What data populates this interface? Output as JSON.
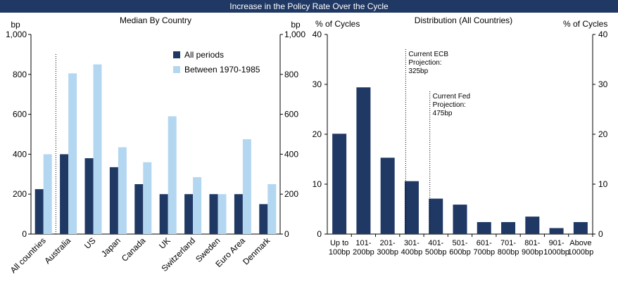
{
  "banner": {
    "title": "Increase in the Policy Rate Over the Cycle"
  },
  "colors": {
    "navy": "#1f3864",
    "light_blue": "#b4d7f1",
    "banner_bg": "#1f3864"
  },
  "chart_data": [
    {
      "type": "bar",
      "title": "Median By Country",
      "ylabel_left": "bp",
      "ylabel_right": "bp",
      "ylim": [
        0,
        1000
      ],
      "yticks": [
        "0",
        "200",
        "400",
        "600",
        "800",
        "1,000"
      ],
      "categories": [
        "All countries",
        "Australia",
        "US",
        "Japan",
        "Canada",
        "UK",
        "Switzerland",
        "Sweden",
        "Euro Area",
        "Denmark"
      ],
      "series": [
        {
          "name": "All periods",
          "color": "#1f3864",
          "values": [
            225,
            400,
            380,
            335,
            250,
            200,
            200,
            200,
            200,
            150
          ]
        },
        {
          "name": "Between 1970-1985",
          "color": "#b4d7f1",
          "values": [
            400,
            805,
            850,
            435,
            360,
            590,
            285,
            200,
            475,
            250
          ]
        }
      ]
    },
    {
      "type": "bar",
      "title": "Distribution (All Countries)",
      "ylabel_left": "% of Cycles",
      "ylabel_right": "% of Cycles",
      "ylim": [
        0,
        40
      ],
      "yticks": [
        "0",
        "10",
        "20",
        "30",
        "40"
      ],
      "categories": [
        [
          "Up to",
          "100bp"
        ],
        [
          "101-",
          "200bp"
        ],
        [
          "201-",
          "300bp"
        ],
        [
          "301-",
          "400bp"
        ],
        [
          "401-",
          "500bp"
        ],
        [
          "501-",
          "600bp"
        ],
        [
          "601-",
          "700bp"
        ],
        [
          "701-",
          "800bp"
        ],
        [
          "801-",
          "900bp"
        ],
        [
          "901-",
          "1000bp"
        ],
        [
          "Above",
          "1000bp"
        ]
      ],
      "values": [
        20.1,
        29.4,
        15.3,
        10.6,
        7.1,
        5.9,
        2.4,
        2.4,
        3.5,
        1.2,
        2.4
      ],
      "annotations": [
        {
          "lines": [
            "Current ECB",
            "Projection:",
            "325bp"
          ],
          "category_pos": 3.25
        },
        {
          "lines": [
            "Current Fed",
            "Projection:",
            "475bp"
          ],
          "category_pos": 4.25
        }
      ]
    }
  ]
}
